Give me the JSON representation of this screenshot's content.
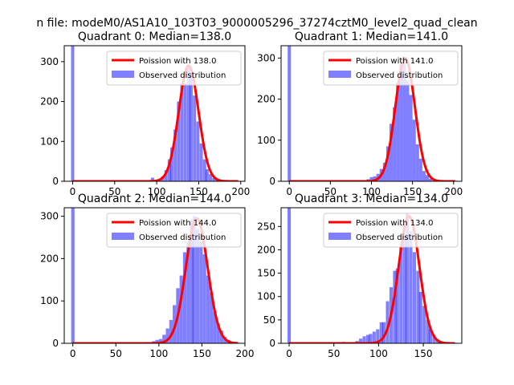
{
  "figure": {
    "suptitle": "n file: modeM0/AS1A10_103T03_9000005296_37274cztM0_level2_quad_clean"
  },
  "colors": {
    "fit": "#ff0000",
    "observed": "#0000ff",
    "axes": "#000000"
  },
  "legend": {
    "fit_label_prefix": "Poission with ",
    "observed_label": "Observed distribution"
  },
  "chart_data": [
    {
      "type": "bar",
      "title": "Quadrant 0: Median=138.0",
      "median": 138.0,
      "fit_label": "Poission with 138.0",
      "observed_label": "Observed distribution",
      "xlim": [
        -10,
        205
      ],
      "ylim": [
        0,
        340
      ],
      "xticks": [
        0,
        50,
        100,
        150,
        200
      ],
      "yticks": [
        0,
        100,
        200,
        300
      ],
      "xticklabels": [
        "0",
        "50",
        "100",
        "150",
        "200"
      ],
      "yticklabels": [
        "0",
        "100",
        "200",
        "300"
      ],
      "bin_width": 3.8,
      "bins": [
        {
          "x": 0,
          "count": 340
        },
        {
          "x": 95,
          "count": 9
        },
        {
          "x": 99,
          "count": 3
        },
        {
          "x": 103,
          "count": 5
        },
        {
          "x": 107,
          "count": 12
        },
        {
          "x": 111,
          "count": 28
        },
        {
          "x": 115,
          "count": 55
        },
        {
          "x": 118,
          "count": 85
        },
        {
          "x": 122,
          "count": 130
        },
        {
          "x": 126,
          "count": 200
        },
        {
          "x": 130,
          "count": 245
        },
        {
          "x": 134,
          "count": 245
        },
        {
          "x": 138,
          "count": 285
        },
        {
          "x": 141,
          "count": 270
        },
        {
          "x": 145,
          "count": 215
        },
        {
          "x": 149,
          "count": 150
        },
        {
          "x": 153,
          "count": 95
        },
        {
          "x": 157,
          "count": 55
        },
        {
          "x": 160,
          "count": 30
        },
        {
          "x": 164,
          "count": 18
        },
        {
          "x": 168,
          "count": 8
        },
        {
          "x": 172,
          "count": 3
        }
      ],
      "fit": {
        "mu": 138,
        "sigma": 11.75,
        "peak": 290
      }
    },
    {
      "type": "bar",
      "title": "Quadrant 1: Median=141.0",
      "median": 141.0,
      "fit_label": "Poission with 141.0",
      "observed_label": "Observed distribution",
      "xlim": [
        -10,
        210
      ],
      "ylim": [
        0,
        330
      ],
      "xticks": [
        0,
        50,
        100,
        150,
        200
      ],
      "yticks": [
        0,
        100,
        200,
        300
      ],
      "xticklabels": [
        "0",
        "50",
        "100",
        "150",
        "200"
      ],
      "yticklabels": [
        "0",
        "100",
        "200",
        "300"
      ],
      "bin_width": 4,
      "bins": [
        {
          "x": 0,
          "count": 330
        },
        {
          "x": 96,
          "count": 5
        },
        {
          "x": 100,
          "count": 10
        },
        {
          "x": 104,
          "count": 12
        },
        {
          "x": 108,
          "count": 18
        },
        {
          "x": 112,
          "count": 30
        },
        {
          "x": 116,
          "count": 45
        },
        {
          "x": 120,
          "count": 85
        },
        {
          "x": 124,
          "count": 140
        },
        {
          "x": 128,
          "count": 180
        },
        {
          "x": 132,
          "count": 240
        },
        {
          "x": 136,
          "count": 285
        },
        {
          "x": 140,
          "count": 295
        },
        {
          "x": 144,
          "count": 245
        },
        {
          "x": 148,
          "count": 210
        },
        {
          "x": 152,
          "count": 150
        },
        {
          "x": 156,
          "count": 90
        },
        {
          "x": 160,
          "count": 55
        },
        {
          "x": 164,
          "count": 25
        },
        {
          "x": 168,
          "count": 15
        },
        {
          "x": 172,
          "count": 6
        }
      ],
      "fit": {
        "mu": 141,
        "sigma": 11.9,
        "peak": 300
      }
    },
    {
      "type": "bar",
      "title": "Quadrant 2: Median=144.0",
      "median": 144.0,
      "fit_label": "Poission with 144.0",
      "observed_label": "Observed distribution",
      "xlim": [
        -10,
        200
      ],
      "ylim": [
        0,
        320
      ],
      "xticks": [
        0,
        50,
        100,
        150,
        200
      ],
      "yticks": [
        0,
        100,
        200,
        300
      ],
      "xticklabels": [
        "0",
        "50",
        "100",
        "150",
        "200"
      ],
      "yticklabels": [
        "0",
        "100",
        "200",
        "300"
      ],
      "bin_width": 3.9,
      "bins": [
        {
          "x": 0,
          "count": 320
        },
        {
          "x": 86,
          "count": 3
        },
        {
          "x": 94,
          "count": 5
        },
        {
          "x": 98,
          "count": 8
        },
        {
          "x": 102,
          "count": 10
        },
        {
          "x": 106,
          "count": 20
        },
        {
          "x": 110,
          "count": 35
        },
        {
          "x": 114,
          "count": 55
        },
        {
          "x": 118,
          "count": 90
        },
        {
          "x": 122,
          "count": 130
        },
        {
          "x": 126,
          "count": 160
        },
        {
          "x": 130,
          "count": 215
        },
        {
          "x": 134,
          "count": 240
        },
        {
          "x": 138,
          "count": 290
        },
        {
          "x": 141,
          "count": 300
        },
        {
          "x": 145,
          "count": 270
        },
        {
          "x": 149,
          "count": 240
        },
        {
          "x": 153,
          "count": 210
        },
        {
          "x": 157,
          "count": 160
        },
        {
          "x": 161,
          "count": 120
        },
        {
          "x": 165,
          "count": 75
        },
        {
          "x": 169,
          "count": 45
        },
        {
          "x": 173,
          "count": 30
        },
        {
          "x": 177,
          "count": 15
        },
        {
          "x": 181,
          "count": 8
        },
        {
          "x": 185,
          "count": 4
        }
      ],
      "fit": {
        "mu": 144,
        "sigma": 12.7,
        "peak": 295
      }
    },
    {
      "type": "bar",
      "title": "Quadrant 3: Median=134.0",
      "median": 134.0,
      "fit_label": "Poission with 134.0",
      "observed_label": "Observed distribution",
      "xlim": [
        -9,
        193
      ],
      "ylim": [
        0,
        290
      ],
      "xticks": [
        0,
        50,
        100,
        150
      ],
      "yticks": [
        0,
        50,
        100,
        150,
        200,
        250
      ],
      "xticklabels": [
        "0",
        "50",
        "100",
        "150"
      ],
      "yticklabels": [
        "0",
        "50",
        "100",
        "150",
        "200",
        "250"
      ],
      "bin_width": 3.7,
      "bins": [
        {
          "x": 0,
          "count": 290
        },
        {
          "x": 61,
          "count": 3
        },
        {
          "x": 69,
          "count": 2
        },
        {
          "x": 76,
          "count": 5
        },
        {
          "x": 80,
          "count": 10
        },
        {
          "x": 84,
          "count": 15
        },
        {
          "x": 88,
          "count": 18
        },
        {
          "x": 91,
          "count": 20
        },
        {
          "x": 95,
          "count": 25
        },
        {
          "x": 99,
          "count": 30
        },
        {
          "x": 103,
          "count": 45
        },
        {
          "x": 106,
          "count": 45
        },
        {
          "x": 110,
          "count": 90
        },
        {
          "x": 114,
          "count": 120
        },
        {
          "x": 118,
          "count": 155
        },
        {
          "x": 121,
          "count": 160
        },
        {
          "x": 125,
          "count": 205
        },
        {
          "x": 129,
          "count": 230
        },
        {
          "x": 132,
          "count": 278
        },
        {
          "x": 136,
          "count": 240
        },
        {
          "x": 140,
          "count": 195
        },
        {
          "x": 144,
          "count": 155
        },
        {
          "x": 147,
          "count": 110
        },
        {
          "x": 151,
          "count": 80
        },
        {
          "x": 155,
          "count": 50
        },
        {
          "x": 158,
          "count": 30
        },
        {
          "x": 162,
          "count": 18
        },
        {
          "x": 166,
          "count": 8
        },
        {
          "x": 170,
          "count": 4
        },
        {
          "x": 184,
          "count": 2
        }
      ],
      "fit": {
        "mu": 134,
        "sigma": 11.6,
        "peak": 272
      }
    }
  ]
}
